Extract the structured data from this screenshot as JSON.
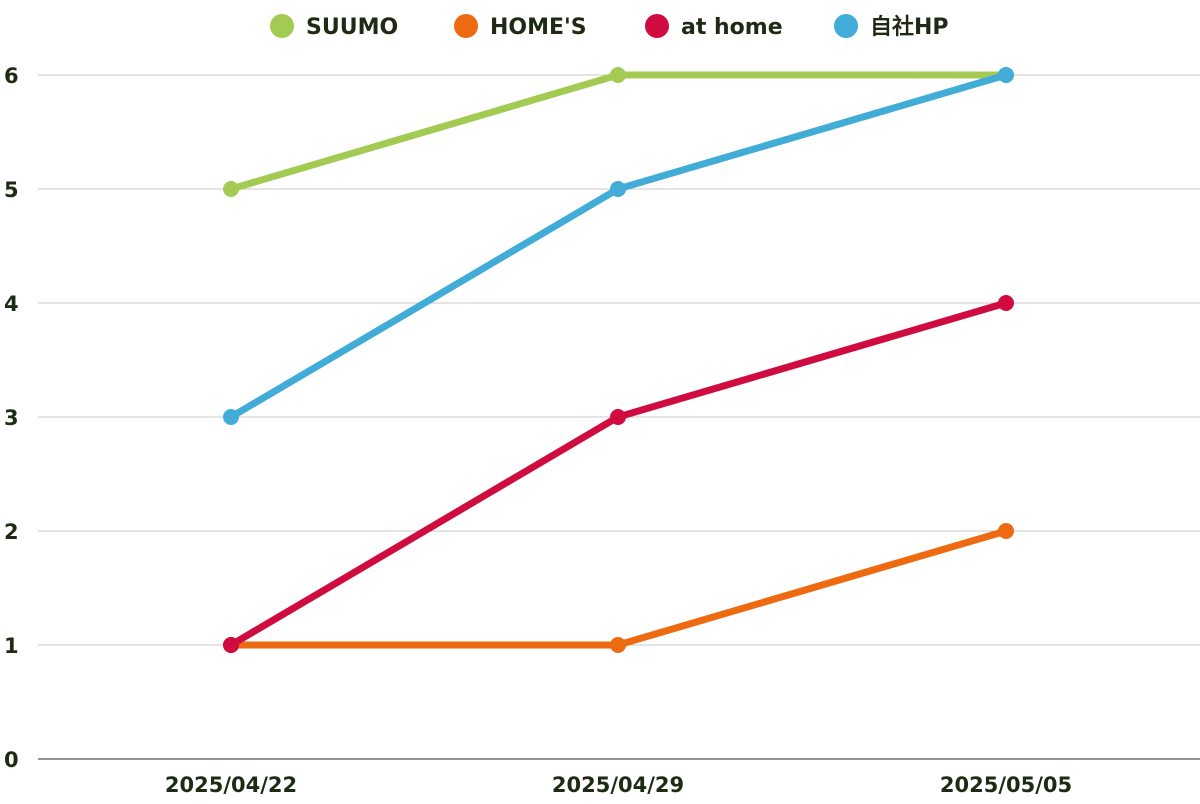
{
  "chart_data": {
    "type": "line",
    "title": "",
    "xlabel": "",
    "ylabel": "",
    "categories": [
      "2025/04/22",
      "2025/04/29",
      "2025/05/05"
    ],
    "ylim": [
      0,
      6
    ],
    "yticks": [
      "0",
      "1",
      "2",
      "3",
      "4",
      "5",
      "6"
    ],
    "grid": true,
    "legend_position": "top",
    "series": [
      {
        "name": "SUUMO",
        "color": "#a3cb53",
        "values": [
          5,
          6,
          6
        ]
      },
      {
        "name": "HOME'S",
        "color": "#ee6a10",
        "values": [
          1,
          1,
          2
        ]
      },
      {
        "name": "at home",
        "color": "#cf0b40",
        "values": [
          1,
          3,
          4
        ]
      },
      {
        "name": "自社HP",
        "color": "#41acd8",
        "values": [
          3,
          5,
          6
        ]
      }
    ]
  }
}
